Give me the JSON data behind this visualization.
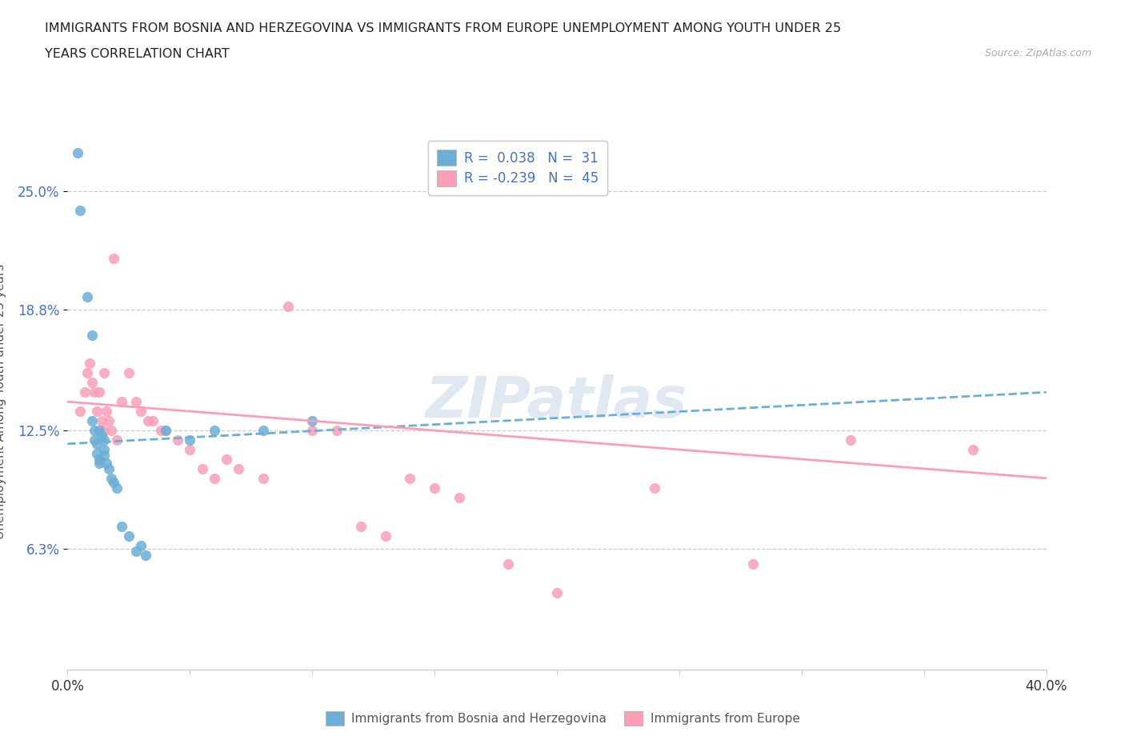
{
  "title_line1": "IMMIGRANTS FROM BOSNIA AND HERZEGOVINA VS IMMIGRANTS FROM EUROPE UNEMPLOYMENT AMONG YOUTH UNDER 25",
  "title_line2": "YEARS CORRELATION CHART",
  "source_text": "Source: ZipAtlas.com",
  "ylabel": "Unemployment Among Youth under 25 years",
  "xlim": [
    0.0,
    0.4
  ],
  "ylim": [
    0.0,
    0.28
  ],
  "yticks": [
    0.063,
    0.125,
    0.188,
    0.25
  ],
  "ytick_labels": [
    "6.3%",
    "12.5%",
    "18.8%",
    "25.0%"
  ],
  "xticks": [
    0.0,
    0.05,
    0.1,
    0.15,
    0.2,
    0.25,
    0.3,
    0.35,
    0.4
  ],
  "xtick_labels": [
    "0.0%",
    "",
    "",
    "",
    "",
    "",
    "",
    "",
    "40.0%"
  ],
  "color_bosnia": "#6baed6",
  "color_europe": "#fa9fb5",
  "legend_R_bosnia": "0.038",
  "legend_N_bosnia": "31",
  "legend_R_europe": "-0.239",
  "legend_N_europe": "45",
  "watermark": "ZIPatlas",
  "bosnia_x": [
    0.004,
    0.005,
    0.008,
    0.01,
    0.01,
    0.011,
    0.011,
    0.012,
    0.012,
    0.013,
    0.013,
    0.013,
    0.014,
    0.015,
    0.015,
    0.015,
    0.016,
    0.017,
    0.018,
    0.019,
    0.02,
    0.022,
    0.025,
    0.028,
    0.03,
    0.032,
    0.04,
    0.05,
    0.06,
    0.08,
    0.1
  ],
  "bosnia_y": [
    0.27,
    0.24,
    0.195,
    0.175,
    0.13,
    0.125,
    0.12,
    0.118,
    0.113,
    0.11,
    0.108,
    0.125,
    0.122,
    0.12,
    0.115,
    0.112,
    0.108,
    0.105,
    0.1,
    0.098,
    0.095,
    0.075,
    0.07,
    0.062,
    0.065,
    0.06,
    0.125,
    0.12,
    0.125,
    0.125,
    0.13
  ],
  "europe_x": [
    0.005,
    0.007,
    0.008,
    0.009,
    0.01,
    0.011,
    0.012,
    0.013,
    0.014,
    0.015,
    0.015,
    0.016,
    0.017,
    0.018,
    0.019,
    0.02,
    0.022,
    0.025,
    0.028,
    0.03,
    0.033,
    0.035,
    0.038,
    0.04,
    0.045,
    0.05,
    0.055,
    0.06,
    0.065,
    0.07,
    0.08,
    0.09,
    0.1,
    0.11,
    0.12,
    0.13,
    0.14,
    0.15,
    0.16,
    0.18,
    0.2,
    0.24,
    0.28,
    0.32,
    0.37
  ],
  "europe_y": [
    0.135,
    0.145,
    0.155,
    0.16,
    0.15,
    0.145,
    0.135,
    0.145,
    0.13,
    0.155,
    0.125,
    0.135,
    0.13,
    0.125,
    0.215,
    0.12,
    0.14,
    0.155,
    0.14,
    0.135,
    0.13,
    0.13,
    0.125,
    0.125,
    0.12,
    0.115,
    0.105,
    0.1,
    0.11,
    0.105,
    0.1,
    0.19,
    0.125,
    0.125,
    0.075,
    0.07,
    0.1,
    0.095,
    0.09,
    0.055,
    0.04,
    0.095,
    0.055,
    0.12,
    0.115
  ]
}
